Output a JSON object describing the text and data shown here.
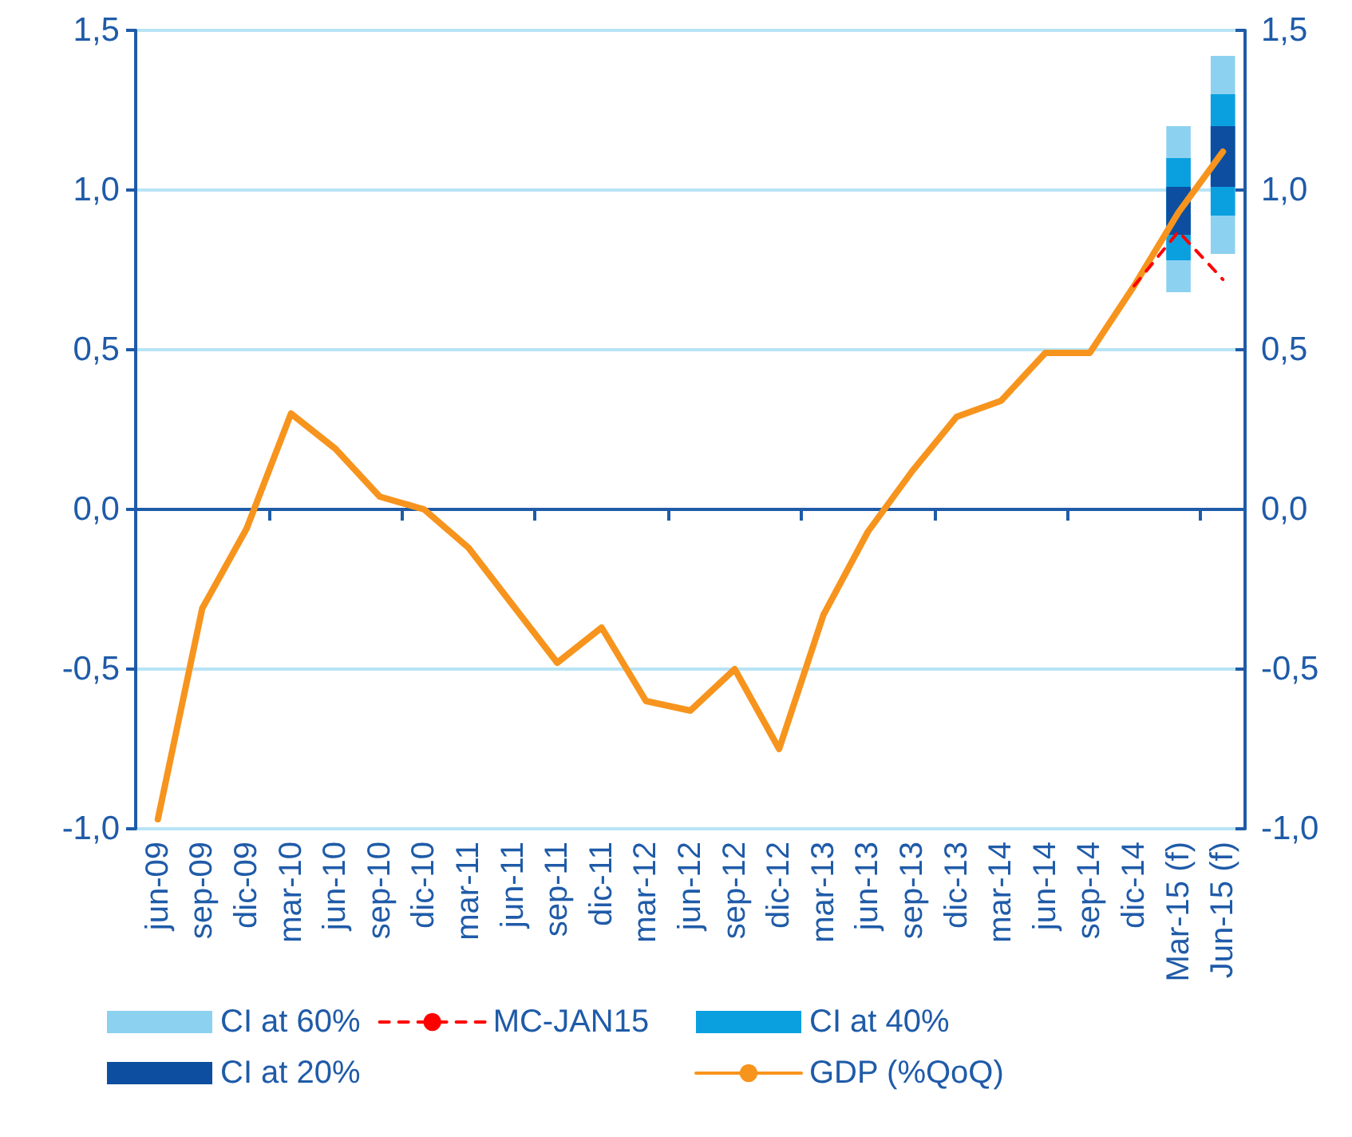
{
  "chart_data": {
    "type": "line",
    "categories": [
      "jun-09",
      "sep-09",
      "dic-09",
      "mar-10",
      "jun-10",
      "sep-10",
      "dic-10",
      "mar-11",
      "jun-11",
      "sep-11",
      "dic-11",
      "mar-12",
      "jun-12",
      "sep-12",
      "dic-12",
      "mar-13",
      "jun-13",
      "sep-13",
      "dic-13",
      "mar-14",
      "jun-14",
      "sep-14",
      "dic-14",
      "Mar-15 (f)",
      "Jun-15 (f)"
    ],
    "series": [
      {
        "name": "CI at 60%",
        "type": "bar",
        "color": "#8dd1f0",
        "base": [
          null,
          null,
          null,
          null,
          null,
          null,
          null,
          null,
          null,
          null,
          null,
          null,
          null,
          null,
          null,
          null,
          null,
          null,
          null,
          null,
          null,
          null,
          null,
          0.68,
          0.8
        ],
        "values": [
          null,
          null,
          null,
          null,
          null,
          null,
          null,
          null,
          null,
          null,
          null,
          null,
          null,
          null,
          null,
          null,
          null,
          null,
          null,
          null,
          null,
          null,
          null,
          0.52,
          0.62
        ]
      },
      {
        "name": "CI at 40%",
        "type": "bar",
        "color": "#0aa0e0",
        "base": [
          null,
          null,
          null,
          null,
          null,
          null,
          null,
          null,
          null,
          null,
          null,
          null,
          null,
          null,
          null,
          null,
          null,
          null,
          null,
          null,
          null,
          null,
          null,
          0.78,
          0.92
        ],
        "values": [
          null,
          null,
          null,
          null,
          null,
          null,
          null,
          null,
          null,
          null,
          null,
          null,
          null,
          null,
          null,
          null,
          null,
          null,
          null,
          null,
          null,
          null,
          null,
          0.32,
          0.38
        ]
      },
      {
        "name": "CI at 20%",
        "type": "bar",
        "color": "#0d4ea0",
        "base": [
          null,
          null,
          null,
          null,
          null,
          null,
          null,
          null,
          null,
          null,
          null,
          null,
          null,
          null,
          null,
          null,
          null,
          null,
          null,
          null,
          null,
          null,
          null,
          0.86,
          1.01
        ],
        "values": [
          null,
          null,
          null,
          null,
          null,
          null,
          null,
          null,
          null,
          null,
          null,
          null,
          null,
          null,
          null,
          null,
          null,
          null,
          null,
          null,
          null,
          null,
          null,
          0.15,
          0.19
        ]
      },
      {
        "name": "GDP (%QoQ)",
        "color": "#f7941d",
        "line_style": "solid",
        "values": [
          -0.97,
          -0.31,
          -0.06,
          0.3,
          0.19,
          0.04,
          0.0,
          -0.12,
          -0.3,
          -0.48,
          -0.37,
          -0.6,
          -0.63,
          -0.5,
          -0.75,
          -0.33,
          -0.07,
          0.12,
          0.29,
          0.34,
          0.49,
          0.49,
          0.7,
          0.93,
          1.12
        ]
      },
      {
        "name": "MC-JAN15",
        "color": "#ff0000",
        "line_style": "dashed",
        "values": [
          null,
          null,
          null,
          null,
          null,
          null,
          null,
          null,
          null,
          null,
          null,
          null,
          null,
          null,
          null,
          null,
          null,
          null,
          null,
          null,
          null,
          null,
          0.7,
          0.87,
          0.72
        ]
      }
    ],
    "ylim": [
      -1.0,
      1.5
    ],
    "yticks": [
      {
        "value": -1.0,
        "label": "-1,0"
      },
      {
        "value": -0.5,
        "label": "-0,5"
      },
      {
        "value": 0.0,
        "label": "0,0"
      },
      {
        "value": 0.5,
        "label": "0,5"
      },
      {
        "value": 1.0,
        "label": "1,0"
      },
      {
        "value": 1.5,
        "label": "1,5"
      }
    ],
    "y2lim": [
      -1.0,
      1.5
    ],
    "y2ticks": [
      {
        "value": -1.0,
        "label": "-1,0"
      },
      {
        "value": -0.5,
        "label": "-0,5"
      },
      {
        "value": 0.0,
        "label": "0,0"
      },
      {
        "value": 0.5,
        "label": "0,5"
      },
      {
        "value": 1.0,
        "label": "1,0"
      },
      {
        "value": 1.5,
        "label": "1,5"
      }
    ],
    "ref_lines": [
      {
        "axis": "y",
        "value": 0.0,
        "color": "#1f5ba8"
      }
    ],
    "grid": "y",
    "legend": "bottom",
    "marker": "none"
  }
}
